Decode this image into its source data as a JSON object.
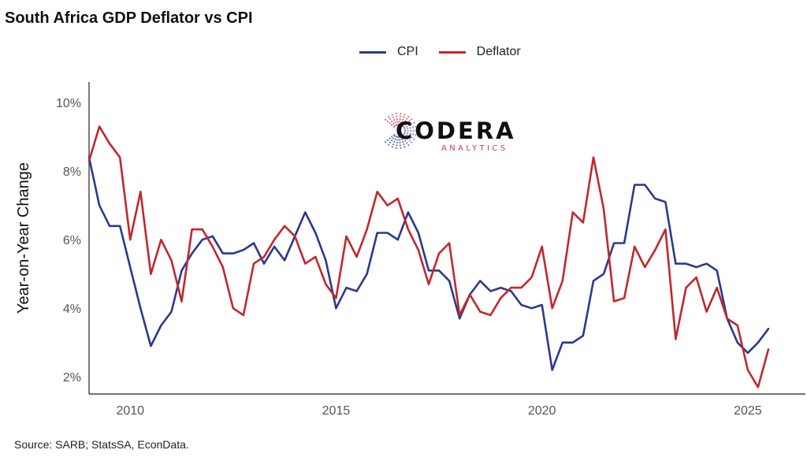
{
  "title": "South Africa GDP Deflator vs CPI",
  "source": "Source: SARB; StatsSA, EconData.",
  "logo": {
    "name": "CODERA",
    "sub": "ANALYTICS"
  },
  "colors": {
    "cpi": "#2b3990",
    "deflator": "#c1272d",
    "axis": "#222222"
  },
  "chart_data": {
    "type": "line",
    "title": "South Africa GDP Deflator vs CPI",
    "xlabel": "",
    "ylabel": "Year-on-Year Change",
    "xlim": [
      2009.0,
      2026.4
    ],
    "ylim": [
      1.5,
      10.6
    ],
    "x_ticks": [
      2010,
      2015,
      2020,
      2025
    ],
    "y_ticks": [
      2,
      4,
      6,
      8,
      10
    ],
    "y_tick_labels": [
      "2%",
      "4%",
      "6%",
      "8%",
      "10%"
    ],
    "grid": false,
    "legend_position": "top-center",
    "x": [
      2009.0,
      2009.25,
      2009.5,
      2009.75,
      2010.0,
      2010.25,
      2010.5,
      2010.75,
      2011.0,
      2011.25,
      2011.5,
      2011.75,
      2012.0,
      2012.25,
      2012.5,
      2012.75,
      2013.0,
      2013.25,
      2013.5,
      2013.75,
      2014.0,
      2014.25,
      2014.5,
      2014.75,
      2015.0,
      2015.25,
      2015.5,
      2015.75,
      2016.0,
      2016.25,
      2016.5,
      2016.75,
      2017.0,
      2017.25,
      2017.5,
      2017.75,
      2018.0,
      2018.25,
      2018.5,
      2018.75,
      2019.0,
      2019.25,
      2019.5,
      2019.75,
      2020.0,
      2020.25,
      2020.5,
      2020.75,
      2021.0,
      2021.25,
      2021.5,
      2021.75,
      2022.0,
      2022.25,
      2022.5,
      2022.75,
      2023.0,
      2023.25,
      2023.5,
      2023.75,
      2024.0,
      2024.25,
      2024.5,
      2024.75,
      2025.0,
      2025.25,
      2025.5
    ],
    "series": [
      {
        "name": "CPI",
        "color": "#2b3990",
        "values": [
          8.4,
          7.0,
          6.4,
          6.4,
          5.2,
          4.0,
          2.9,
          3.5,
          3.9,
          5.1,
          5.6,
          6.0,
          6.1,
          5.6,
          5.6,
          5.7,
          5.9,
          5.3,
          5.8,
          5.4,
          6.1,
          6.8,
          6.2,
          5.4,
          4.0,
          4.6,
          4.5,
          5.0,
          6.2,
          6.2,
          6.0,
          6.8,
          6.2,
          5.1,
          5.1,
          4.8,
          3.7,
          4.4,
          4.8,
          4.5,
          4.6,
          4.5,
          4.1,
          4.0,
          4.1,
          2.2,
          3.0,
          3.0,
          3.2,
          4.8,
          5.0,
          5.9,
          5.9,
          7.6,
          7.6,
          7.2,
          7.1,
          5.3,
          5.3,
          5.2,
          5.3,
          5.1,
          3.7,
          3.0,
          2.7,
          3.0,
          3.4
        ]
      },
      {
        "name": "Deflator",
        "color": "#c1272d",
        "values": [
          8.3,
          9.3,
          8.8,
          8.4,
          6.0,
          7.4,
          5.0,
          6.0,
          5.4,
          4.2,
          6.3,
          6.3,
          5.8,
          5.2,
          4.0,
          3.8,
          5.3,
          5.5,
          6.0,
          6.4,
          6.1,
          5.3,
          5.5,
          4.7,
          4.3,
          6.1,
          5.5,
          6.3,
          7.4,
          7.0,
          7.2,
          6.3,
          5.7,
          4.7,
          5.6,
          5.9,
          3.8,
          4.4,
          3.9,
          3.8,
          4.3,
          4.6,
          4.6,
          4.9,
          5.8,
          4.0,
          4.8,
          6.8,
          6.5,
          8.4,
          6.9,
          4.2,
          4.3,
          5.8,
          5.2,
          5.7,
          6.3,
          3.1,
          4.6,
          4.9,
          3.9,
          4.6,
          3.7,
          3.5,
          2.2,
          1.7,
          2.8
        ]
      }
    ]
  }
}
